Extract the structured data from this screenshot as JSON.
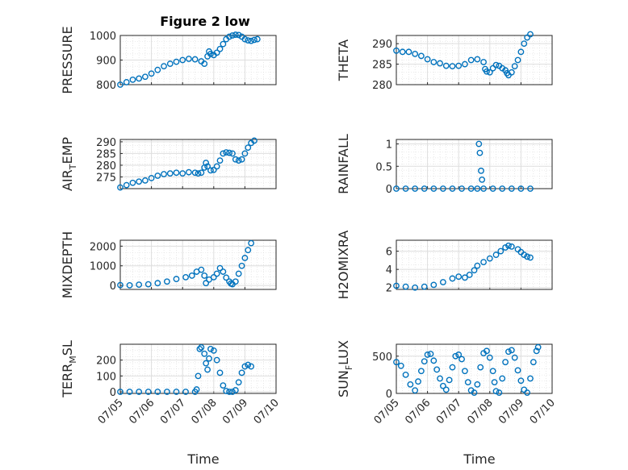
{
  "figure": {
    "title": "Figure 2 low",
    "marker_color": "#0072bd",
    "grid_color": "#d9d9d9",
    "axis_color": "#262626",
    "x_tick_labels": [
      "07/05",
      "07/06",
      "07/07",
      "07/08",
      "07/09",
      "07/10"
    ],
    "xlabel": "Time"
  },
  "chart_data": [
    {
      "type": "scatter",
      "id": "pressure",
      "ylabel": "PRESSURE",
      "title": "Figure 2 low",
      "xlim": [
        0,
        5
      ],
      "ylim": [
        800,
        1000
      ],
      "yticks": [
        800,
        900,
        1000
      ],
      "ytick_labels": [
        "800",
        "900",
        "1000"
      ],
      "grid": true,
      "show_xticklabels": false,
      "points": [
        [
          0,
          800
        ],
        [
          0.2,
          810
        ],
        [
          0.4,
          820
        ],
        [
          0.6,
          825
        ],
        [
          0.8,
          832
        ],
        [
          1.0,
          845
        ],
        [
          1.2,
          860
        ],
        [
          1.4,
          875
        ],
        [
          1.6,
          885
        ],
        [
          1.8,
          893
        ],
        [
          2.0,
          900
        ],
        [
          2.2,
          905
        ],
        [
          2.4,
          903
        ],
        [
          2.6,
          895
        ],
        [
          2.7,
          885
        ],
        [
          2.8,
          915
        ],
        [
          2.85,
          935
        ],
        [
          2.9,
          925
        ],
        [
          3.0,
          920
        ],
        [
          3.1,
          930
        ],
        [
          3.2,
          945
        ],
        [
          3.3,
          965
        ],
        [
          3.4,
          985
        ],
        [
          3.5,
          995
        ],
        [
          3.6,
          1000
        ],
        [
          3.7,
          1003
        ],
        [
          3.8,
          1002
        ],
        [
          3.9,
          995
        ],
        [
          4.0,
          985
        ],
        [
          4.1,
          980
        ],
        [
          4.2,
          978
        ],
        [
          4.3,
          982
        ],
        [
          4.4,
          985
        ]
      ]
    },
    {
      "type": "scatter",
      "id": "theta",
      "ylabel": "THETA",
      "xlim": [
        0,
        5
      ],
      "ylim": [
        280,
        292
      ],
      "yticks": [
        280,
        285,
        290
      ],
      "ytick_labels": [
        "280",
        "285",
        "290"
      ],
      "grid": true,
      "show_xticklabels": false,
      "points": [
        [
          0,
          288.3
        ],
        [
          0.2,
          288
        ],
        [
          0.4,
          288
        ],
        [
          0.6,
          287.5
        ],
        [
          0.8,
          287
        ],
        [
          1.0,
          286.2
        ],
        [
          1.2,
          285.5
        ],
        [
          1.4,
          285.2
        ],
        [
          1.6,
          284.6
        ],
        [
          1.8,
          284.5
        ],
        [
          2.0,
          284.6
        ],
        [
          2.2,
          285
        ],
        [
          2.4,
          286
        ],
        [
          2.6,
          286.2
        ],
        [
          2.8,
          285.5
        ],
        [
          2.85,
          283.8
        ],
        [
          2.9,
          283.2
        ],
        [
          3.0,
          283
        ],
        [
          3.1,
          284
        ],
        [
          3.2,
          284.8
        ],
        [
          3.3,
          284.6
        ],
        [
          3.4,
          284
        ],
        [
          3.5,
          283.5
        ],
        [
          3.55,
          282.8
        ],
        [
          3.6,
          282.3
        ],
        [
          3.7,
          283
        ],
        [
          3.8,
          284.5
        ],
        [
          3.9,
          286
        ],
        [
          4.0,
          288
        ],
        [
          4.1,
          290
        ],
        [
          4.2,
          291.5
        ],
        [
          4.3,
          292.3
        ]
      ]
    },
    {
      "type": "scatter",
      "id": "air_temp",
      "ylabel": "AIR_TEMP",
      "xlim": [
        0,
        5
      ],
      "ylim": [
        270,
        291
      ],
      "yticks": [
        275,
        280,
        285,
        290
      ],
      "ytick_labels": [
        "275",
        "280",
        "285",
        "290"
      ],
      "grid": true,
      "show_xticklabels": false,
      "points": [
        [
          0,
          270.5
        ],
        [
          0.2,
          271.5
        ],
        [
          0.4,
          272.5
        ],
        [
          0.6,
          273
        ],
        [
          0.8,
          273.5
        ],
        [
          1.0,
          274.5
        ],
        [
          1.2,
          275.5
        ],
        [
          1.4,
          276.2
        ],
        [
          1.6,
          276.5
        ],
        [
          1.8,
          276.8
        ],
        [
          2.0,
          276.5
        ],
        [
          2.2,
          277
        ],
        [
          2.4,
          276.8
        ],
        [
          2.5,
          276.5
        ],
        [
          2.6,
          276.8
        ],
        [
          2.7,
          279
        ],
        [
          2.75,
          281
        ],
        [
          2.8,
          279.5
        ],
        [
          2.9,
          277.8
        ],
        [
          3.0,
          278
        ],
        [
          3.1,
          279.5
        ],
        [
          3.2,
          282
        ],
        [
          3.3,
          285
        ],
        [
          3.4,
          285.5
        ],
        [
          3.5,
          285.3
        ],
        [
          3.6,
          285
        ],
        [
          3.7,
          282.5
        ],
        [
          3.8,
          282
        ],
        [
          3.9,
          282.5
        ],
        [
          4.0,
          285
        ],
        [
          4.1,
          287.5
        ],
        [
          4.2,
          289.5
        ],
        [
          4.3,
          290.5
        ]
      ]
    },
    {
      "type": "scatter",
      "id": "rainfall",
      "ylabel": "RAINFALL",
      "xlim": [
        0,
        5
      ],
      "ylim": [
        0,
        1.1
      ],
      "yticks": [
        0,
        0.5,
        1
      ],
      "ytick_labels": [
        "0",
        "0.5",
        "1"
      ],
      "grid": true,
      "show_xticklabels": false,
      "points": [
        [
          0,
          0
        ],
        [
          0.3,
          0
        ],
        [
          0.6,
          0
        ],
        [
          0.9,
          0
        ],
        [
          1.2,
          0
        ],
        [
          1.5,
          0
        ],
        [
          1.8,
          0
        ],
        [
          2.1,
          0
        ],
        [
          2.4,
          0
        ],
        [
          2.6,
          0
        ],
        [
          2.65,
          1.0
        ],
        [
          2.68,
          0.8
        ],
        [
          2.72,
          0.4
        ],
        [
          2.75,
          0.2
        ],
        [
          2.8,
          0
        ],
        [
          3.1,
          0
        ],
        [
          3.4,
          0
        ],
        [
          3.7,
          0
        ],
        [
          4.0,
          0
        ],
        [
          4.3,
          0
        ]
      ]
    },
    {
      "type": "scatter",
      "id": "mixdepth",
      "ylabel": "MIXDEPTH",
      "xlim": [
        0,
        5
      ],
      "ylim": [
        -200,
        2300
      ],
      "yticks": [
        0,
        1000,
        2000
      ],
      "ytick_labels": [
        "0",
        "1000",
        "2000"
      ],
      "grid": true,
      "show_xticklabels": false,
      "points": [
        [
          0,
          20
        ],
        [
          0.3,
          10
        ],
        [
          0.6,
          40
        ],
        [
          0.9,
          60
        ],
        [
          1.2,
          120
        ],
        [
          1.5,
          200
        ],
        [
          1.8,
          330
        ],
        [
          2.1,
          420
        ],
        [
          2.3,
          500
        ],
        [
          2.45,
          700
        ],
        [
          2.6,
          800
        ],
        [
          2.7,
          500
        ],
        [
          2.75,
          120
        ],
        [
          2.85,
          300
        ],
        [
          3.0,
          420
        ],
        [
          3.1,
          600
        ],
        [
          3.2,
          880
        ],
        [
          3.3,
          700
        ],
        [
          3.4,
          400
        ],
        [
          3.5,
          200
        ],
        [
          3.55,
          100
        ],
        [
          3.6,
          60
        ],
        [
          3.7,
          200
        ],
        [
          3.8,
          600
        ],
        [
          3.9,
          1000
        ],
        [
          4.0,
          1400
        ],
        [
          4.1,
          1800
        ],
        [
          4.2,
          2150
        ]
      ]
    },
    {
      "type": "scatter",
      "id": "h2omixra",
      "ylabel": "H2OMIXRA",
      "xlim": [
        0,
        5
      ],
      "ylim": [
        1.8,
        7.2
      ],
      "yticks": [
        2,
        4,
        6
      ],
      "ytick_labels": [
        "2",
        "4",
        "6"
      ],
      "grid": true,
      "show_xticklabels": false,
      "points": [
        [
          0,
          2.2
        ],
        [
          0.3,
          2.1
        ],
        [
          0.6,
          2.0
        ],
        [
          0.9,
          2.1
        ],
        [
          1.2,
          2.3
        ],
        [
          1.5,
          2.6
        ],
        [
          1.8,
          3.0
        ],
        [
          2.0,
          3.2
        ],
        [
          2.2,
          3.1
        ],
        [
          2.35,
          3.4
        ],
        [
          2.5,
          3.9
        ],
        [
          2.6,
          4.4
        ],
        [
          2.8,
          4.8
        ],
        [
          3.0,
          5.2
        ],
        [
          3.2,
          5.6
        ],
        [
          3.35,
          6.0
        ],
        [
          3.5,
          6.4
        ],
        [
          3.6,
          6.6
        ],
        [
          3.7,
          6.5
        ],
        [
          3.9,
          6.2
        ],
        [
          4.0,
          5.9
        ],
        [
          4.1,
          5.6
        ],
        [
          4.2,
          5.4
        ],
        [
          4.3,
          5.3
        ]
      ]
    },
    {
      "type": "scatter",
      "id": "terr_msl",
      "ylabel": "TERR_MSL",
      "xlim": [
        0,
        5
      ],
      "ylim": [
        -10,
        300
      ],
      "yticks": [
        0,
        100,
        200
      ],
      "ytick_labels": [
        "0",
        "100",
        "200"
      ],
      "grid": true,
      "show_xticklabels": true,
      "points": [
        [
          0,
          0
        ],
        [
          0.3,
          0
        ],
        [
          0.6,
          0
        ],
        [
          0.9,
          0
        ],
        [
          1.2,
          0
        ],
        [
          1.5,
          0
        ],
        [
          1.8,
          0
        ],
        [
          2.1,
          0
        ],
        [
          2.4,
          0
        ],
        [
          2.45,
          15
        ],
        [
          2.5,
          100
        ],
        [
          2.55,
          270
        ],
        [
          2.6,
          280
        ],
        [
          2.7,
          240
        ],
        [
          2.75,
          180
        ],
        [
          2.8,
          140
        ],
        [
          2.85,
          210
        ],
        [
          2.9,
          270
        ],
        [
          3.0,
          260
        ],
        [
          3.1,
          200
        ],
        [
          3.2,
          120
        ],
        [
          3.3,
          40
        ],
        [
          3.4,
          5
        ],
        [
          3.5,
          0
        ],
        [
          3.6,
          0
        ],
        [
          3.7,
          10
        ],
        [
          3.8,
          60
        ],
        [
          3.9,
          120
        ],
        [
          4.0,
          160
        ],
        [
          4.1,
          170
        ],
        [
          4.2,
          160
        ]
      ]
    },
    {
      "type": "scatter",
      "id": "sun_flux",
      "ylabel": "SUN_FLUX",
      "xlim": [
        0,
        5
      ],
      "ylim": [
        0,
        660
      ],
      "yticks": [
        0,
        500
      ],
      "ytick_labels": [
        "0",
        "500"
      ],
      "grid": true,
      "show_xticklabels": true,
      "points": [
        [
          0,
          420
        ],
        [
          0.15,
          370
        ],
        [
          0.3,
          250
        ],
        [
          0.45,
          120
        ],
        [
          0.6,
          40
        ],
        [
          0.7,
          160
        ],
        [
          0.8,
          300
        ],
        [
          0.9,
          430
        ],
        [
          1.0,
          520
        ],
        [
          1.1,
          530
        ],
        [
          1.2,
          440
        ],
        [
          1.3,
          320
        ],
        [
          1.4,
          200
        ],
        [
          1.5,
          100
        ],
        [
          1.6,
          50
        ],
        [
          1.7,
          180
        ],
        [
          1.8,
          350
        ],
        [
          1.9,
          500
        ],
        [
          2.0,
          520
        ],
        [
          2.1,
          460
        ],
        [
          2.2,
          300
        ],
        [
          2.3,
          150
        ],
        [
          2.4,
          40
        ],
        [
          2.5,
          10
        ],
        [
          2.6,
          120
        ],
        [
          2.7,
          350
        ],
        [
          2.8,
          540
        ],
        [
          2.9,
          570
        ],
        [
          3.0,
          480
        ],
        [
          3.1,
          300
        ],
        [
          3.15,
          150
        ],
        [
          3.2,
          30
        ],
        [
          3.3,
          10
        ],
        [
          3.4,
          200
        ],
        [
          3.5,
          420
        ],
        [
          3.6,
          560
        ],
        [
          3.7,
          580
        ],
        [
          3.8,
          480
        ],
        [
          3.9,
          310
        ],
        [
          4.0,
          170
        ],
        [
          4.1,
          50
        ],
        [
          4.2,
          10
        ],
        [
          4.3,
          200
        ],
        [
          4.4,
          420
        ],
        [
          4.5,
          570
        ],
        [
          4.55,
          620
        ]
      ]
    }
  ]
}
